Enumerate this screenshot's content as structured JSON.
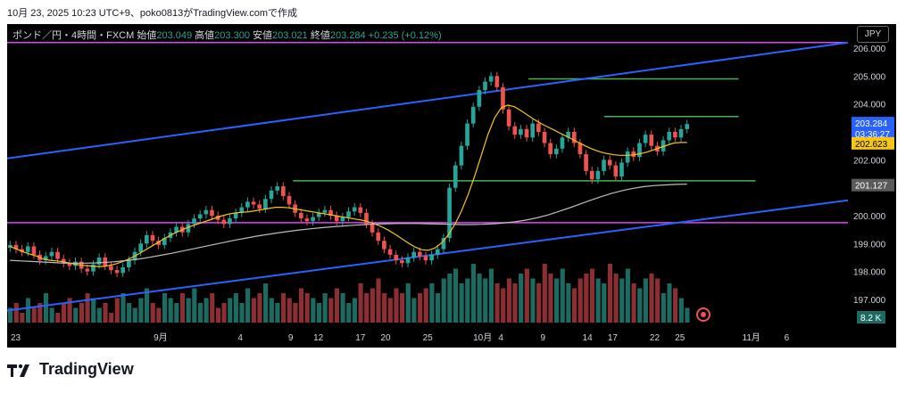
{
  "header_text": "10月 23, 2025 10:23 UTC+9、poko0813がTradingView.comで作成",
  "info": {
    "symbol": "ポンド／円・4時間・FXCM",
    "open_label": "始値",
    "open": "203.049",
    "high_label": "高値",
    "high": "203.300",
    "low_label": "安値",
    "low": "203.021",
    "close_label": "終値",
    "close": "203.284",
    "change": "+0.235 (+0.12%)"
  },
  "currency": "JPY",
  "brand": "TradingView",
  "colors": {
    "up": "#26a69a",
    "down": "#ef5350",
    "channel": "#2962ff",
    "hline_green": "#4caf50",
    "hline_purple": "#e040fb",
    "ma_short": "#f5c518",
    "ma_long": "#bdbdbd"
  },
  "chart_data": {
    "type": "candlestick",
    "y_ticks": [
      "197.000",
      "198.000",
      "199.000",
      "200.000",
      "201.000",
      "202.000",
      "203.000",
      "204.000",
      "205.000",
      "206.000"
    ],
    "x_ticks": [
      {
        "label": "23",
        "x": 0
      },
      {
        "label": "9月",
        "x": 17
      },
      {
        "label": "4",
        "x": 27
      },
      {
        "label": "9",
        "x": 33
      },
      {
        "label": "12",
        "x": 36
      },
      {
        "label": "17",
        "x": 41
      },
      {
        "label": "20",
        "x": 44
      },
      {
        "label": "25",
        "x": 49
      },
      {
        "label": "10月",
        "x": 55
      },
      {
        "label": "4",
        "x": 58
      },
      {
        "label": "9",
        "x": 63
      },
      {
        "label": "14",
        "x": 68
      },
      {
        "label": "17",
        "x": 71
      },
      {
        "label": "22",
        "x": 76
      },
      {
        "label": "25",
        "x": 79
      },
      {
        "label": "11月",
        "x": 87
      },
      {
        "label": "6",
        "x": 92
      }
    ],
    "price_labels": {
      "last": {
        "value": "203.284",
        "countdown": "03:36:27"
      },
      "ma_short": "202.623",
      "ma_long": "201.127",
      "volume": "8.2 K"
    },
    "closes": [
      198.95,
      198.8,
      198.7,
      198.9,
      198.6,
      198.4,
      198.55,
      198.7,
      198.45,
      198.3,
      198.2,
      198.35,
      198.1,
      198.0,
      198.25,
      198.5,
      198.2,
      198.05,
      197.95,
      198.15,
      198.4,
      198.7,
      199.0,
      199.3,
      199.1,
      198.95,
      199.2,
      199.4,
      199.6,
      199.4,
      199.7,
      199.9,
      200.05,
      200.2,
      200.0,
      199.85,
      199.7,
      199.9,
      200.1,
      200.3,
      200.5,
      200.4,
      200.25,
      200.6,
      200.9,
      201.05,
      200.7,
      200.4,
      200.1,
      199.9,
      199.8,
      199.95,
      200.1,
      200.2,
      200.0,
      199.8,
      199.95,
      200.15,
      200.3,
      200.1,
      199.7,
      199.4,
      199.1,
      198.8,
      198.6,
      198.4,
      198.3,
      198.5,
      198.7,
      198.55,
      198.4,
      198.6,
      198.8,
      199.2,
      201.0,
      201.8,
      202.5,
      203.3,
      203.9,
      204.5,
      204.8,
      205.0,
      204.6,
      203.8,
      203.2,
      202.9,
      203.1,
      202.8,
      203.3,
      203.0,
      202.6,
      202.2,
      202.4,
      202.8,
      203.0,
      202.6,
      202.2,
      201.6,
      201.3,
      201.6,
      202.0,
      201.8,
      201.4,
      201.9,
      202.3,
      202.1,
      202.6,
      202.9,
      202.5,
      202.3,
      202.7,
      203.0,
      202.8,
      203.1,
      203.28
    ],
    "ma_short": [
      198.9,
      198.8,
      198.7,
      198.62,
      198.55,
      198.45,
      198.4,
      198.38,
      198.35,
      198.3,
      198.25,
      198.22,
      198.2,
      198.18,
      198.18,
      198.22,
      198.28,
      198.36,
      198.46,
      198.58,
      198.72,
      198.86,
      199.0,
      199.14,
      199.28,
      199.4,
      199.5,
      199.6,
      199.68,
      199.76,
      199.84,
      199.92,
      200.0,
      200.06,
      200.1,
      200.12,
      200.14,
      200.18,
      200.22,
      200.26,
      200.3,
      200.3,
      200.28,
      200.24,
      200.2,
      200.16,
      200.12,
      200.08,
      200.04,
      200.0,
      199.96,
      199.92,
      199.88,
      199.84,
      199.78,
      199.7,
      199.6,
      199.48,
      199.34,
      199.18,
      199.02,
      198.88,
      198.78,
      198.76,
      198.84,
      199.02,
      199.3,
      199.68,
      200.16,
      200.74,
      201.42,
      202.16,
      202.9,
      203.5,
      203.86,
      203.96,
      203.9,
      203.76,
      203.6,
      203.44,
      203.3,
      203.18,
      203.06,
      202.94,
      202.82,
      202.7,
      202.58,
      202.46,
      202.36,
      202.28,
      202.22,
      202.18,
      202.16,
      202.16,
      202.18,
      202.22,
      202.28,
      202.36,
      202.44,
      202.52,
      202.6,
      202.62,
      202.62
    ],
    "ma_long": [
      198.4,
      198.38,
      198.36,
      198.34,
      198.32,
      198.3,
      198.3,
      198.3,
      198.31,
      198.33,
      198.36,
      198.4,
      198.45,
      198.51,
      198.58,
      198.65,
      198.73,
      198.81,
      198.89,
      198.97,
      199.05,
      199.13,
      199.2,
      199.27,
      199.33,
      199.39,
      199.44,
      199.49,
      199.53,
      199.57,
      199.6,
      199.63,
      199.66,
      199.68,
      199.7,
      199.71,
      199.72,
      199.72,
      199.72,
      199.71,
      199.7,
      199.69,
      199.68,
      199.68,
      199.69,
      199.71,
      199.74,
      199.78,
      199.84,
      199.92,
      200.02,
      200.14,
      200.27,
      200.41,
      200.55,
      200.68,
      200.8,
      200.9,
      200.98,
      201.04,
      201.08,
      201.1,
      201.12,
      201.13
    ],
    "volumes": [
      3,
      4,
      2,
      5,
      3,
      4,
      6,
      3,
      2,
      4,
      5,
      3,
      4,
      6,
      5,
      3,
      4,
      2,
      5,
      6,
      4,
      3,
      5,
      7,
      4,
      3,
      6,
      5,
      4,
      6,
      5,
      7,
      4,
      5,
      6,
      3,
      4,
      5,
      6,
      4,
      7,
      5,
      6,
      8,
      5,
      4,
      6,
      5,
      4,
      7,
      6,
      5,
      4,
      6,
      5,
      7,
      6,
      4,
      5,
      8,
      6,
      7,
      9,
      6,
      5,
      7,
      6,
      8,
      5,
      6,
      7,
      8,
      6,
      9,
      10,
      11,
      8,
      9,
      12,
      10,
      9,
      11,
      8,
      7,
      9,
      8,
      10,
      11,
      9,
      8,
      12,
      10,
      9,
      11,
      8,
      7,
      9,
      10,
      11,
      9,
      8,
      12,
      10,
      9,
      11,
      8,
      7,
      9,
      10,
      9,
      6,
      8,
      7,
      5,
      3
    ],
    "horizontal_lines": [
      {
        "price": 206.2,
        "color": "purple",
        "from": 0,
        "to": 100
      },
      {
        "price": 199.75,
        "color": "purple",
        "from": 0,
        "to": 100
      },
      {
        "price": 204.9,
        "color": "green",
        "from": 62,
        "to": 87
      },
      {
        "price": 203.55,
        "color": "green",
        "from": 71,
        "to": 87
      },
      {
        "price": 201.25,
        "color": "green",
        "from": 34,
        "to": 89
      }
    ],
    "trend_lines": [
      {
        "p1": [
          0,
          202.05
        ],
        "p2": [
          100,
          206.2
        ]
      },
      {
        "p1": [
          0,
          196.6
        ],
        "p2": [
          100,
          200.55
        ]
      }
    ]
  }
}
